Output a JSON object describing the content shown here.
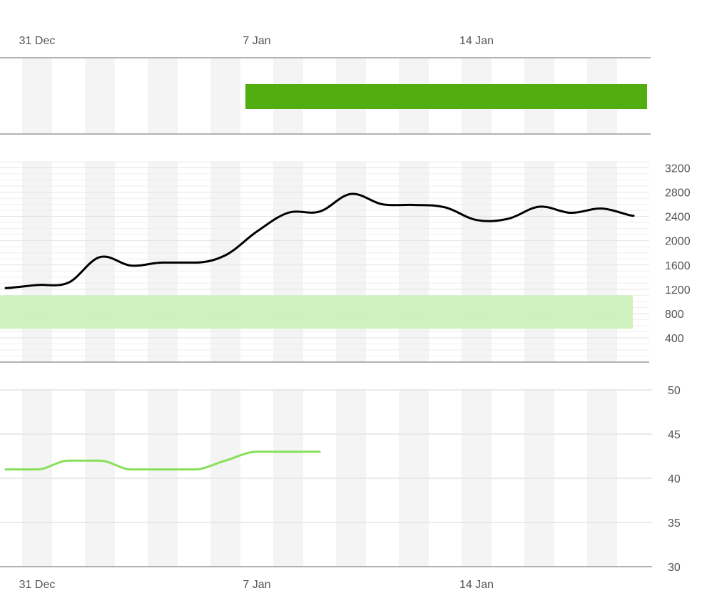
{
  "chart_data": {
    "type": "line",
    "x_axis": {
      "ticks": [
        {
          "date": "2023-12-31",
          "label": "31 Dec"
        },
        {
          "date": "2024-01-07",
          "label": "7 Jan"
        },
        {
          "date": "2024-01-14",
          "label": "14 Jan"
        }
      ],
      "range": [
        "2023-12-30",
        "2024-01-19"
      ]
    },
    "panels": [
      {
        "id": "status-panel",
        "type": "timeline-bar",
        "bar": {
          "start": "2024-01-07",
          "end": "2024-01-19",
          "color": "#52ae10"
        }
      },
      {
        "id": "main-panel",
        "type": "line",
        "ylim": [
          0,
          3300
        ],
        "yticks": [
          400,
          800,
          1200,
          1600,
          2000,
          2400,
          2800,
          3200
        ],
        "target_band": {
          "low": 550,
          "high": 1100,
          "color": "#c8f0b4"
        },
        "series": [
          {
            "color": "#000000",
            "points": [
              {
                "x": "2023-12-30",
                "y": 1220
              },
              {
                "x": "2023-12-31",
                "y": 1270
              },
              {
                "x": "2024-01-01",
                "y": 1310
              },
              {
                "x": "2024-01-02",
                "y": 1730
              },
              {
                "x": "2024-01-03",
                "y": 1590
              },
              {
                "x": "2024-01-04",
                "y": 1640
              },
              {
                "x": "2024-01-05",
                "y": 1640
              },
              {
                "x": "2024-01-06",
                "y": 1760
              },
              {
                "x": "2024-01-07",
                "y": 2150
              },
              {
                "x": "2024-01-08",
                "y": 2460
              },
              {
                "x": "2024-01-09",
                "y": 2480
              },
              {
                "x": "2024-01-10",
                "y": 2770
              },
              {
                "x": "2024-01-11",
                "y": 2600
              },
              {
                "x": "2024-01-12",
                "y": 2590
              },
              {
                "x": "2024-01-13",
                "y": 2550
              },
              {
                "x": "2024-01-14",
                "y": 2340
              },
              {
                "x": "2024-01-15",
                "y": 2360
              },
              {
                "x": "2024-01-16",
                "y": 2560
              },
              {
                "x": "2024-01-17",
                "y": 2460
              },
              {
                "x": "2024-01-18",
                "y": 2530
              },
              {
                "x": "2024-01-19",
                "y": 2410
              }
            ]
          }
        ]
      },
      {
        "id": "bottom-panel",
        "type": "line",
        "ylim": [
          30,
          50
        ],
        "yticks": [
          30,
          35,
          40,
          45,
          50
        ],
        "series": [
          {
            "color": "#88e05a",
            "points": [
              {
                "x": "2023-12-30",
                "y": 41
              },
              {
                "x": "2023-12-31",
                "y": 41
              },
              {
                "x": "2024-01-01",
                "y": 42
              },
              {
                "x": "2024-01-02",
                "y": 42
              },
              {
                "x": "2024-01-03",
                "y": 41
              },
              {
                "x": "2024-01-04",
                "y": 41
              },
              {
                "x": "2024-01-05",
                "y": 41
              },
              {
                "x": "2024-01-06",
                "y": 42
              },
              {
                "x": "2024-01-07",
                "y": 43
              },
              {
                "x": "2024-01-08",
                "y": 43
              },
              {
                "x": "2024-01-09",
                "y": 43
              }
            ]
          }
        ]
      }
    ],
    "grid": true
  }
}
